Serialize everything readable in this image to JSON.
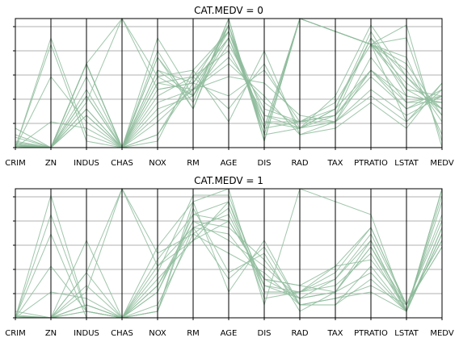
{
  "chart_data": [
    {
      "type": "parallel-coordinates",
      "title": "CAT.MEDV = 0",
      "axes": [
        "CRIM",
        "ZN",
        "INDUS",
        "CHAS",
        "NOX",
        "RM",
        "AGE",
        "DIS",
        "RAD",
        "TAX",
        "PTRATIO",
        "LSTAT",
        "MEDV"
      ],
      "normalized": true,
      "ylim": [
        0,
        1
      ],
      "grid": true,
      "line_color": "#8fbc9c",
      "lines": [
        [
          0.02,
          0.0,
          0.65,
          0,
          0.6,
          0.5,
          0.95,
          0.15,
          1.0,
          0.9,
          0.8,
          0.45,
          0.3
        ],
        [
          0.01,
          0.0,
          0.3,
          0,
          0.35,
          0.45,
          0.7,
          0.35,
          0.15,
          0.25,
          0.6,
          0.4,
          0.35
        ],
        [
          0.05,
          0.0,
          0.65,
          1,
          0.55,
          0.6,
          0.9,
          0.1,
          1.0,
          0.9,
          0.8,
          0.2,
          0.5
        ],
        [
          0.0,
          0.8,
          0.05,
          0,
          0.1,
          0.55,
          0.3,
          0.65,
          0.15,
          0.2,
          0.4,
          0.2,
          0.45
        ],
        [
          0.01,
          0.0,
          0.25,
          0,
          0.3,
          0.4,
          0.8,
          0.3,
          0.2,
          0.25,
          0.85,
          0.55,
          0.3
        ],
        [
          0.1,
          0.0,
          0.65,
          0,
          0.7,
          0.35,
          1.0,
          0.05,
          1.0,
          0.9,
          0.8,
          0.7,
          0.1
        ],
        [
          0.02,
          0.0,
          0.4,
          0,
          0.45,
          0.5,
          0.85,
          0.2,
          0.15,
          0.3,
          0.9,
          0.45,
          0.4
        ],
        [
          0.0,
          0.2,
          0.15,
          0,
          0.2,
          0.45,
          0.55,
          0.5,
          0.25,
          0.2,
          0.6,
          0.35,
          0.35
        ],
        [
          0.08,
          0.0,
          0.65,
          0,
          0.75,
          0.3,
          0.95,
          0.1,
          1.0,
          0.9,
          0.8,
          0.85,
          0.05
        ],
        [
          0.01,
          0.0,
          0.3,
          0,
          0.4,
          0.55,
          0.75,
          0.25,
          0.2,
          0.25,
          0.55,
          0.3,
          0.45
        ],
        [
          0.03,
          0.0,
          0.65,
          0,
          0.85,
          0.4,
          0.95,
          0.05,
          1.0,
          0.9,
          0.8,
          0.6,
          0.2
        ],
        [
          0.0,
          0.55,
          0.2,
          0,
          0.1,
          0.5,
          0.4,
          0.6,
          0.2,
          0.2,
          0.45,
          0.25,
          0.4
        ],
        [
          0.01,
          0.0,
          0.35,
          1,
          0.45,
          0.5,
          0.85,
          0.2,
          0.2,
          0.3,
          0.6,
          0.3,
          0.4
        ],
        [
          0.02,
          0.0,
          0.45,
          0,
          0.55,
          0.4,
          0.95,
          0.1,
          0.15,
          0.4,
          0.95,
          0.55,
          0.25
        ],
        [
          0.0,
          0.0,
          0.25,
          0,
          0.25,
          0.45,
          0.65,
          0.4,
          0.1,
          0.2,
          0.7,
          0.35,
          0.4
        ],
        [
          0.15,
          0.0,
          0.65,
          0,
          0.7,
          0.3,
          1.0,
          0.05,
          1.0,
          0.9,
          0.8,
          0.95,
          0.0
        ],
        [
          0.01,
          0.0,
          0.55,
          0,
          0.5,
          0.45,
          0.9,
          0.15,
          0.2,
          0.35,
          0.8,
          0.5,
          0.3
        ],
        [
          0.0,
          0.85,
          0.1,
          0,
          0.05,
          0.6,
          0.2,
          0.75,
          0.1,
          0.15,
          0.35,
          0.15,
          0.5
        ],
        [
          0.02,
          0.0,
          0.4,
          0,
          0.5,
          0.55,
          0.9,
          0.25,
          0.15,
          0.3,
          0.85,
          0.4,
          0.35
        ],
        [
          0.04,
          0.0,
          0.65,
          0,
          0.6,
          0.4,
          0.85,
          0.15,
          1.0,
          0.9,
          0.8,
          0.65,
          0.25
        ]
      ]
    },
    {
      "type": "parallel-coordinates",
      "title": "CAT.MEDV = 1",
      "axes": [
        "CRIM",
        "ZN",
        "INDUS",
        "CHAS",
        "NOX",
        "RM",
        "AGE",
        "DIS",
        "RAD",
        "TAX",
        "PTRATIO",
        "LSTAT",
        "MEDV"
      ],
      "normalized": true,
      "ylim": [
        0,
        1
      ],
      "grid": true,
      "line_color": "#8fbc9c",
      "lines": [
        [
          0.0,
          0.95,
          0.05,
          0,
          0.05,
          0.9,
          0.2,
          0.6,
          0.1,
          0.15,
          0.2,
          0.05,
          1.0
        ],
        [
          0.0,
          0.0,
          0.1,
          0,
          0.25,
          0.75,
          0.6,
          0.4,
          0.15,
          0.2,
          0.6,
          0.05,
          0.7
        ],
        [
          0.01,
          0.0,
          0.35,
          1,
          0.5,
          0.65,
          0.85,
          0.2,
          0.2,
          0.4,
          0.7,
          0.1,
          0.6
        ],
        [
          0.0,
          0.8,
          0.05,
          0,
          0.05,
          0.7,
          0.3,
          0.55,
          0.1,
          0.1,
          0.3,
          0.05,
          0.9
        ],
        [
          0.0,
          0.0,
          0.1,
          0,
          0.2,
          0.8,
          0.75,
          0.3,
          0.25,
          0.2,
          0.55,
          0.1,
          0.75
        ],
        [
          0.05,
          0.0,
          0.6,
          0,
          0.55,
          0.9,
          1.0,
          0.1,
          1.0,
          0.9,
          0.8,
          0.05,
          1.0
        ],
        [
          0.0,
          0.2,
          0.15,
          0,
          0.2,
          0.75,
          0.7,
          0.45,
          0.1,
          0.1,
          0.4,
          0.05,
          0.65
        ],
        [
          0.01,
          0.0,
          0.05,
          0,
          0.3,
          0.6,
          0.9,
          0.25,
          0.15,
          0.3,
          0.65,
          0.1,
          0.55
        ],
        [
          0.0,
          0.65,
          0.0,
          0,
          0.05,
          0.85,
          0.35,
          0.5,
          0.05,
          0.2,
          0.35,
          0.05,
          0.95
        ],
        [
          0.0,
          0.0,
          0.2,
          1,
          0.4,
          0.7,
          0.8,
          0.25,
          0.2,
          0.25,
          0.5,
          0.05,
          0.7
        ],
        [
          0.02,
          0.0,
          0.1,
          0,
          0.35,
          0.95,
          0.95,
          0.2,
          0.2,
          0.3,
          0.6,
          0.05,
          1.0
        ],
        [
          0.0,
          0.4,
          0.05,
          0,
          0.1,
          0.65,
          0.5,
          0.35,
          0.1,
          0.15,
          0.25,
          0.1,
          0.6
        ],
        [
          0.0,
          0.0,
          0.05,
          0,
          0.25,
          0.7,
          0.65,
          0.3,
          0.15,
          0.2,
          0.55,
          0.05,
          0.65
        ],
        [
          0.01,
          0.0,
          0.25,
          0,
          0.45,
          0.8,
          0.9,
          0.15,
          0.2,
          0.35,
          0.7,
          0.1,
          0.8
        ],
        [
          0.0,
          0.0,
          0.35,
          0,
          0.4,
          0.6,
          0.75,
          0.3,
          0.25,
          0.4,
          0.45,
          0.1,
          0.55
        ]
      ]
    }
  ]
}
